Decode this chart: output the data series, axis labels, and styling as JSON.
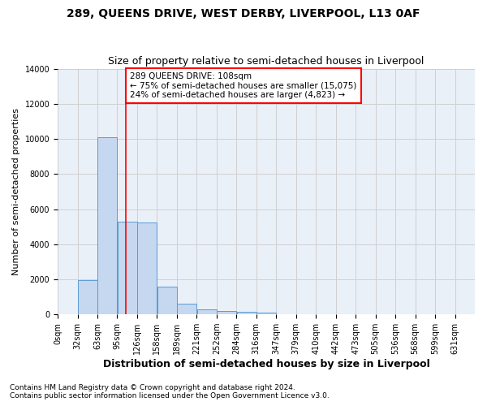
{
  "title": "289, QUEENS DRIVE, WEST DERBY, LIVERPOOL, L13 0AF",
  "subtitle": "Size of property relative to semi-detached houses in Liverpool",
  "xlabel": "Distribution of semi-detached houses by size in Liverpool",
  "ylabel": "Number of semi-detached properties",
  "footnote1": "Contains HM Land Registry data © Crown copyright and database right 2024.",
  "footnote2": "Contains public sector information licensed under the Open Government Licence v3.0.",
  "annotation_line1": "289 QUEENS DRIVE: 108sqm",
  "annotation_line2": "← 75% of semi-detached houses are smaller (15,075)",
  "annotation_line3": "24% of semi-detached houses are larger (4,823) →",
  "property_size": 108,
  "bar_width": 31.5,
  "bin_edges": [
    0,
    31.5,
    63,
    94.5,
    126,
    157.5,
    189,
    220.5,
    252,
    283.5,
    315,
    346.5,
    378,
    409.5,
    441,
    472.5,
    504,
    535.5,
    567,
    598.5,
    630,
    661.5
  ],
  "bin_labels": [
    "0sqm",
    "32sqm",
    "63sqm",
    "95sqm",
    "126sqm",
    "158sqm",
    "189sqm",
    "221sqm",
    "252sqm",
    "284sqm",
    "316sqm",
    "347sqm",
    "379sqm",
    "410sqm",
    "442sqm",
    "473sqm",
    "505sqm",
    "536sqm",
    "568sqm",
    "599sqm",
    "631sqm"
  ],
  "bar_values": [
    0,
    1950,
    10100,
    5300,
    5250,
    1580,
    620,
    280,
    185,
    130,
    120,
    0,
    0,
    0,
    0,
    0,
    0,
    0,
    0,
    0,
    0
  ],
  "bar_color": "#c5d8f0",
  "bar_edge_color": "#5b9bd5",
  "red_line_x": 108,
  "ylim": [
    0,
    14000
  ],
  "yticks": [
    0,
    2000,
    4000,
    6000,
    8000,
    10000,
    12000,
    14000
  ],
  "grid_color": "#d0d0d0",
  "bg_color": "#eaf0f8",
  "title_fontsize": 10,
  "subtitle_fontsize": 9,
  "annotation_fontsize": 7.5,
  "tick_fontsize": 7,
  "ylabel_fontsize": 8,
  "xlabel_fontsize": 9
}
